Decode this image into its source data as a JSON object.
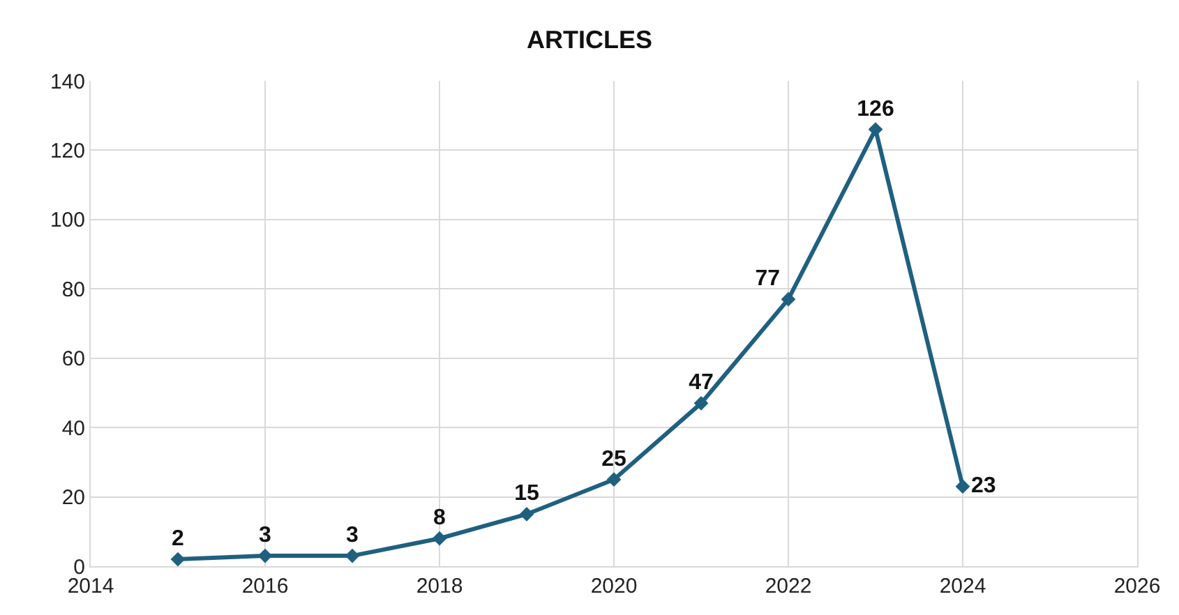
{
  "chart_data": {
    "type": "line",
    "title": "ARTICLES",
    "x": [
      2015,
      2016,
      2017,
      2018,
      2019,
      2020,
      2021,
      2022,
      2023,
      2024
    ],
    "series": [
      {
        "color": "#1f6080",
        "values": [
          2,
          3,
          3,
          8,
          15,
          25,
          47,
          77,
          126,
          23
        ]
      }
    ],
    "xlim": [
      2014,
      2026
    ],
    "xticks": [
      2014,
      2016,
      2018,
      2020,
      2022,
      2024,
      2026
    ],
    "ylim": [
      0,
      140
    ],
    "yticks": [
      0,
      20,
      40,
      60,
      80,
      100,
      120,
      140
    ],
    "grid": true,
    "marker": "diamond",
    "line_style": "solid",
    "data_labels": true
  }
}
